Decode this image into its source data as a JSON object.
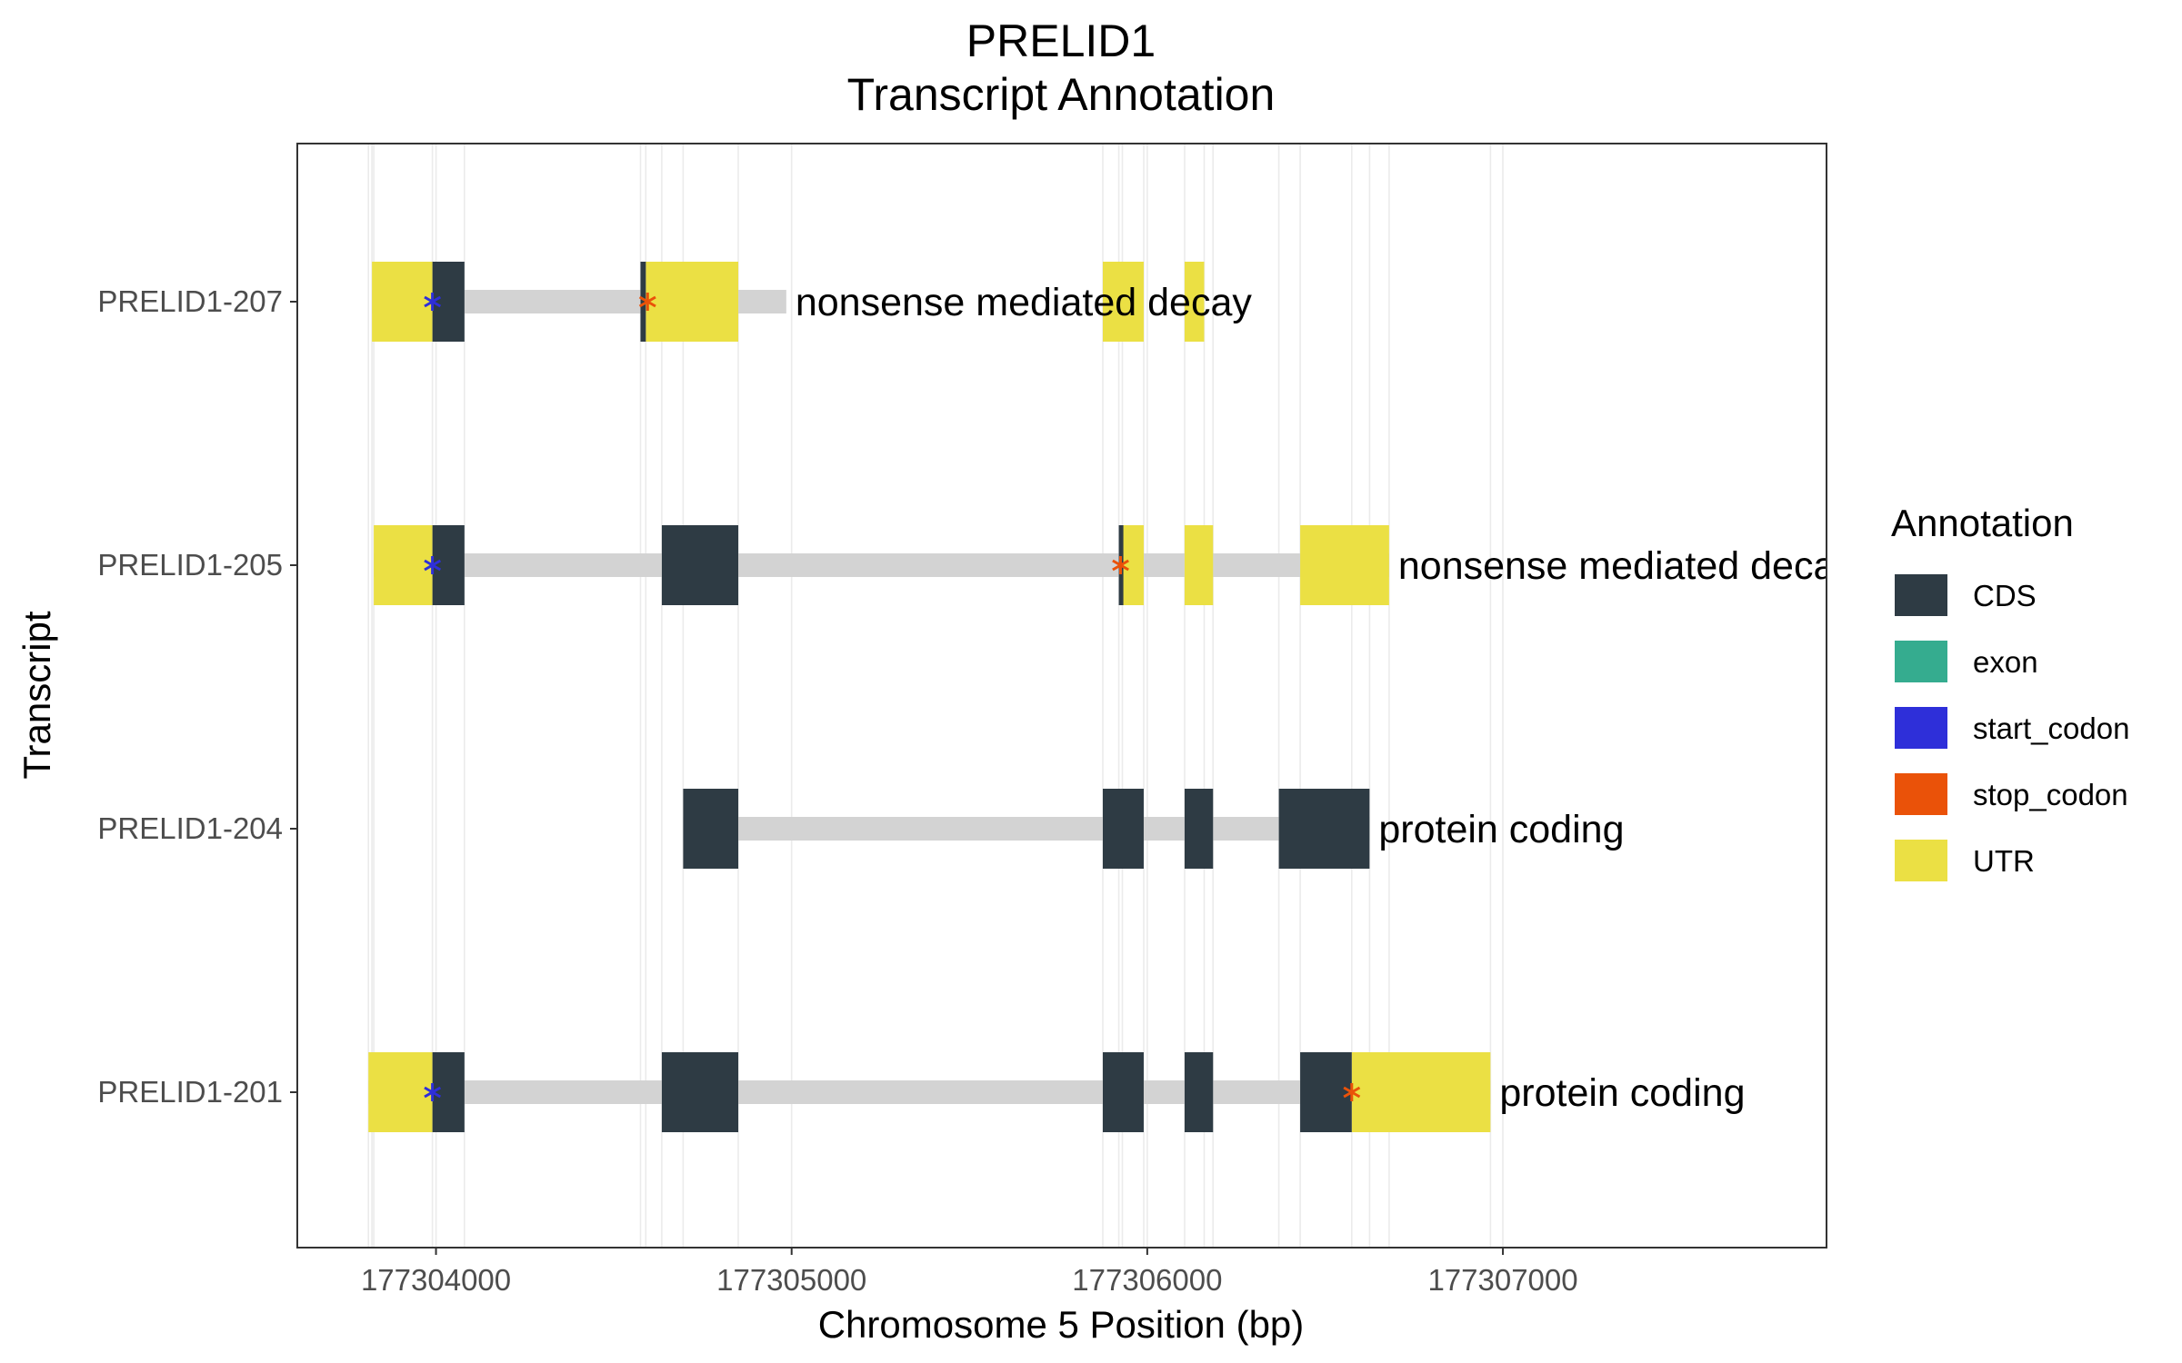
{
  "chart_data": {
    "type": "gene-track",
    "title": "PRELID1",
    "subtitle": "Transcript Annotation",
    "xlabel": "Chromosome 5 Position (bp)",
    "ylabel": "Transcript",
    "xlim": [
      177303610,
      177307910
    ],
    "x_ticks": [
      177304000,
      177305000,
      177306000,
      177307000
    ],
    "x_tick_labels": [
      "177304000",
      "177305000",
      "177306000",
      "177307000"
    ],
    "grid": true,
    "legend": {
      "title": "Annotation",
      "position": "right",
      "entries": [
        {
          "label": "CDS",
          "color": "#2e3b44"
        },
        {
          "label": "exon",
          "color": "#35ac8f"
        },
        {
          "label": "start_codon",
          "color": "#2e2fd9"
        },
        {
          "label": "stop_codon",
          "color": "#ea5209"
        },
        {
          "label": "UTR",
          "color": "#ebe044"
        }
      ]
    },
    "colors": {
      "CDS": "#2e3b44",
      "UTR": "#ebe044",
      "intron": "#d3d3d3",
      "start_codon": "#2e2fd9",
      "stop_codon": "#ea5209"
    },
    "transcripts": [
      {
        "name": "PRELID1-207",
        "biotype": "nonsense mediated decay",
        "span": [
          177303820,
          177304985
        ],
        "cds": [
          [
            177303990,
            177304080
          ],
          [
            177304575,
            177304590
          ]
        ],
        "utr": [
          [
            177303820,
            177303990
          ],
          [
            177304590,
            177304850
          ],
          [
            177305875,
            177305990
          ],
          [
            177306105,
            177306160
          ]
        ],
        "start_codon": 177303990,
        "stop_codon": 177304595
      },
      {
        "name": "PRELID1-205",
        "biotype": "nonsense mediated decay",
        "span": [
          177303825,
          177306680
        ],
        "cds": [
          [
            177303990,
            177304080
          ],
          [
            177304635,
            177304850
          ],
          [
            177305920,
            177305930
          ]
        ],
        "utr": [
          [
            177303825,
            177303990
          ],
          [
            177305930,
            177305990
          ],
          [
            177306105,
            177306185
          ],
          [
            177306430,
            177306680
          ]
        ],
        "start_codon": 177303990,
        "stop_codon": 177305925
      },
      {
        "name": "PRELID1-204",
        "biotype": "protein coding",
        "span": [
          177304695,
          177306625
        ],
        "cds": [
          [
            177304695,
            177304850
          ],
          [
            177305875,
            177305990
          ],
          [
            177306105,
            177306185
          ],
          [
            177306370,
            177306625
          ]
        ],
        "utr": [],
        "start_codon": null,
        "stop_codon": null
      },
      {
        "name": "PRELID1-201",
        "biotype": "protein coding",
        "span": [
          177303810,
          177306965
        ],
        "cds": [
          [
            177303990,
            177304080
          ],
          [
            177304635,
            177304850
          ],
          [
            177305875,
            177305990
          ],
          [
            177306105,
            177306185
          ],
          [
            177306430,
            177306575
          ]
        ],
        "utr": [
          [
            177303810,
            177303990
          ],
          [
            177306575,
            177306965
          ]
        ],
        "start_codon": 177303990,
        "stop_codon": 177306575
      }
    ]
  }
}
